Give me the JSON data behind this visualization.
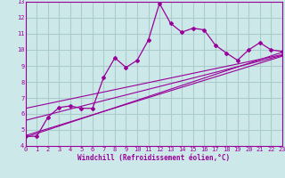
{
  "xlabel": "Windchill (Refroidissement éolien,°C)",
  "bg_color": "#cce8e8",
  "line_color": "#990099",
  "grid_color": "#aacccc",
  "x_min": 0,
  "x_max": 23,
  "y_min": 4,
  "y_max": 13,
  "series": [
    [
      0,
      4.6
    ],
    [
      1,
      4.6
    ],
    [
      2,
      5.8
    ],
    [
      3,
      6.4
    ],
    [
      4,
      6.5
    ],
    [
      5,
      6.35
    ],
    [
      6,
      6.35
    ],
    [
      7,
      8.3
    ],
    [
      8,
      9.5
    ],
    [
      9,
      8.9
    ],
    [
      10,
      9.35
    ],
    [
      11,
      10.6
    ],
    [
      12,
      12.9
    ],
    [
      13,
      11.65
    ],
    [
      14,
      11.1
    ],
    [
      15,
      11.35
    ],
    [
      16,
      11.25
    ],
    [
      17,
      10.3
    ],
    [
      18,
      9.8
    ],
    [
      19,
      9.35
    ],
    [
      20,
      10.0
    ],
    [
      21,
      10.45
    ],
    [
      22,
      10.0
    ],
    [
      23,
      9.9
    ]
  ],
  "linear_lines": [
    [
      [
        0,
        4.55
      ],
      [
        23,
        9.85
      ]
    ],
    [
      [
        0,
        4.65
      ],
      [
        23,
        9.6
      ]
    ],
    [
      [
        0,
        5.6
      ],
      [
        23,
        9.65
      ]
    ],
    [
      [
        0,
        6.35
      ],
      [
        23,
        9.7
      ]
    ]
  ]
}
